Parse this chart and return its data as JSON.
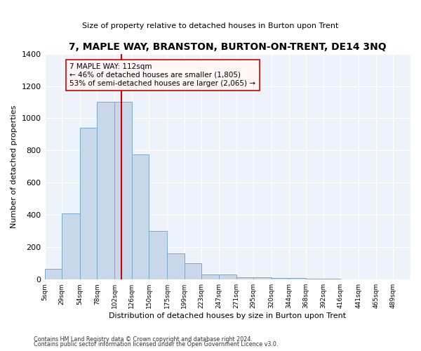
{
  "title": "7, MAPLE WAY, BRANSTON, BURTON-ON-TRENT, DE14 3NQ",
  "subtitle": "Size of property relative to detached houses in Burton upon Trent",
  "xlabel": "Distribution of detached houses by size in Burton upon Trent",
  "ylabel": "Number of detached properties",
  "footnote1": "Contains HM Land Registry data © Crown copyright and database right 2024.",
  "footnote2": "Contains public sector information licensed under the Open Government Licence v3.0.",
  "bin_labels": [
    "5sqm",
    "29sqm",
    "54sqm",
    "78sqm",
    "102sqm",
    "126sqm",
    "150sqm",
    "175sqm",
    "199sqm",
    "223sqm",
    "247sqm",
    "271sqm",
    "295sqm",
    "320sqm",
    "344sqm",
    "368sqm",
    "392sqm",
    "416sqm",
    "441sqm",
    "465sqm",
    "489sqm"
  ],
  "bin_edges": [
    5,
    29,
    54,
    78,
    102,
    126,
    150,
    175,
    199,
    223,
    247,
    271,
    295,
    320,
    344,
    368,
    392,
    416,
    441,
    465,
    489
  ],
  "bar_heights": [
    65,
    410,
    940,
    1100,
    1100,
    775,
    300,
    160,
    100,
    30,
    30,
    15,
    15,
    10,
    10,
    5,
    5,
    0,
    0,
    0,
    0
  ],
  "property_size": 112,
  "property_label": "7 MAPLE WAY: 112sqm",
  "annotation_line1": "← 46% of detached houses are smaller (1,805)",
  "annotation_line2": "53% of semi-detached houses are larger (2,065) →",
  "bar_color": "#c8d8ea",
  "bar_edge_color": "#7aaac8",
  "vline_color": "#cc0000",
  "annotation_box_facecolor": "#fff5f5",
  "annotation_box_edgecolor": "#cc0000",
  "ylim": [
    0,
    1400
  ],
  "background_color": "#eef2fb"
}
